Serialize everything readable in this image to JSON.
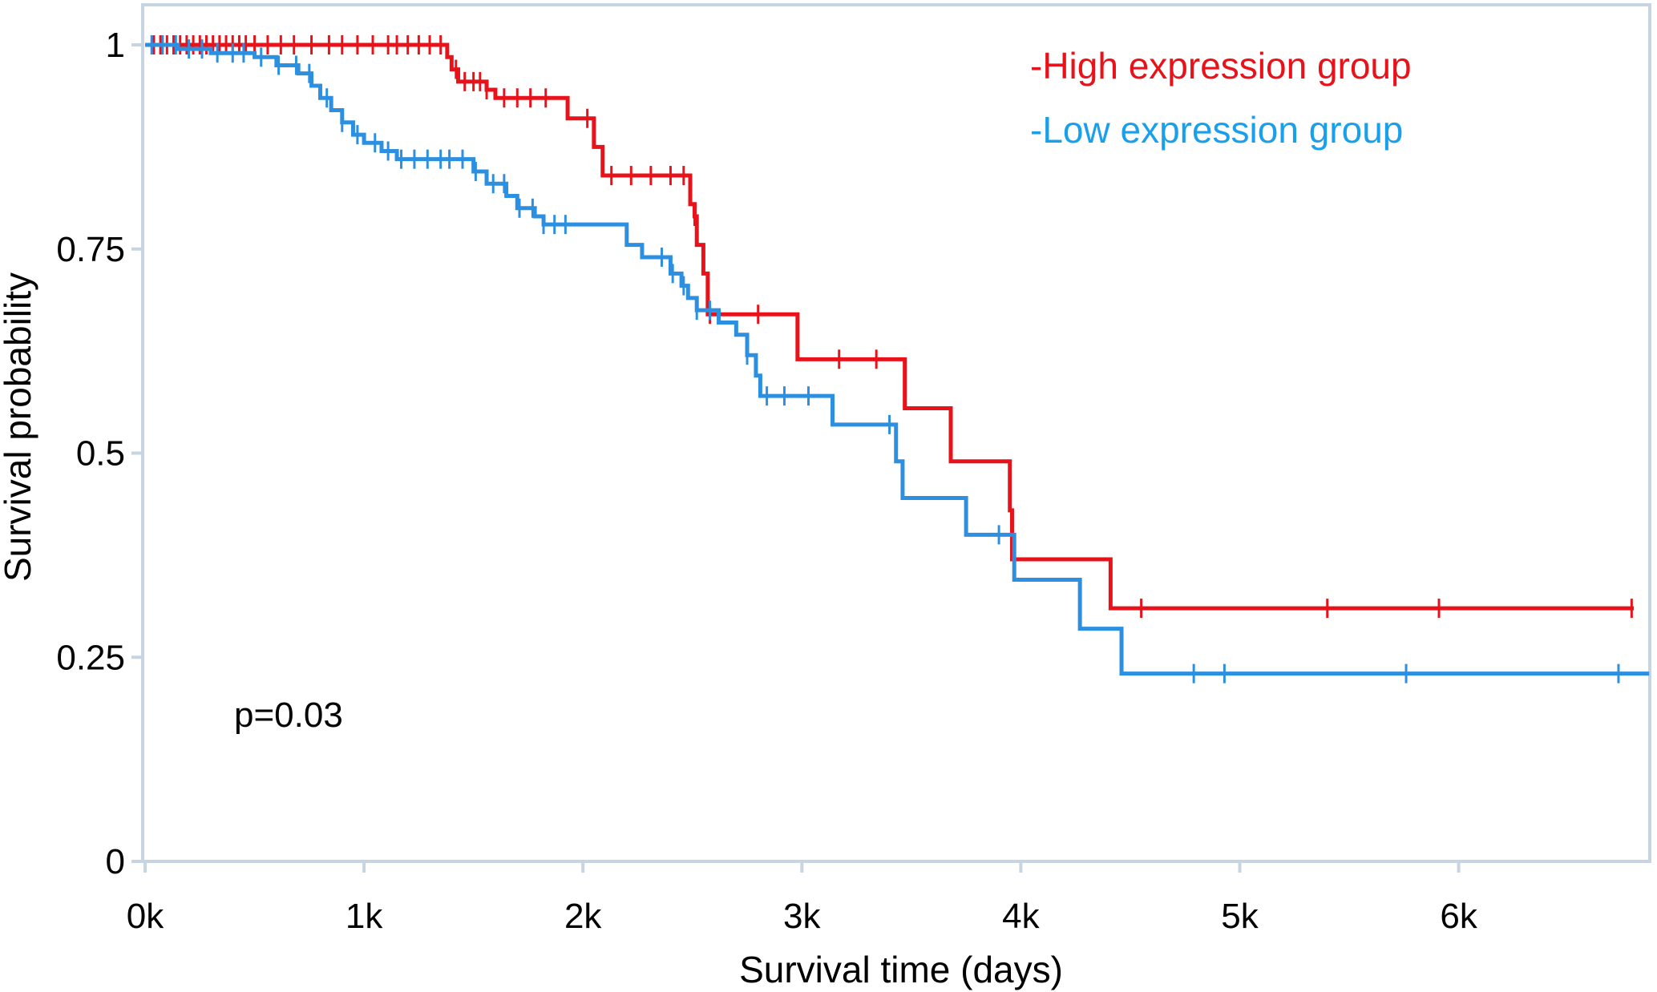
{
  "chart_data": {
    "type": "line",
    "subtype": "kaplan-meier",
    "title": "",
    "xlabel": "Survival time (days)",
    "ylabel": "Survival probability",
    "xlim": [
      0,
      6900
    ],
    "ylim": [
      0,
      1
    ],
    "x_ticks": [
      0,
      1000,
      2000,
      3000,
      4000,
      5000,
      6000
    ],
    "x_tick_labels": [
      "0k",
      "1k",
      "2k",
      "3k",
      "4k",
      "5k",
      "6k"
    ],
    "y_ticks": [
      0,
      0.25,
      0.5,
      0.75,
      1
    ],
    "y_tick_labels": [
      "0",
      "0.25",
      "0.5",
      "0.75",
      "1"
    ],
    "grid": false,
    "legend_position": "top-right",
    "annotation": "p=0.03",
    "series": [
      {
        "name": "-High expression group",
        "color": "#e8131a",
        "steps": [
          [
            0,
            1.0
          ],
          [
            1380,
            0.985
          ],
          [
            1400,
            0.97
          ],
          [
            1430,
            0.955
          ],
          [
            1560,
            0.945
          ],
          [
            1600,
            0.935
          ],
          [
            1930,
            0.91
          ],
          [
            2050,
            0.875
          ],
          [
            2090,
            0.84
          ],
          [
            2490,
            0.805
          ],
          [
            2510,
            0.79
          ],
          [
            2520,
            0.755
          ],
          [
            2550,
            0.72
          ],
          [
            2570,
            0.67
          ],
          [
            2980,
            0.615
          ],
          [
            3470,
            0.555
          ],
          [
            3680,
            0.49
          ],
          [
            3950,
            0.43
          ],
          [
            3960,
            0.37
          ],
          [
            4410,
            0.31
          ],
          [
            6800,
            0.31
          ]
        ],
        "censor_x": [
          40,
          70,
          100,
          130,
          160,
          190,
          220,
          250,
          280,
          310,
          340,
          370,
          400,
          430,
          460,
          500,
          560,
          620,
          680,
          760,
          840,
          900,
          970,
          1040,
          1110,
          1150,
          1200,
          1250,
          1300,
          1350,
          1420,
          1460,
          1500,
          1530,
          1560,
          1640,
          1700,
          1760,
          1830,
          2020,
          2130,
          2220,
          2310,
          2400,
          2460,
          2510,
          2580,
          2800,
          3170,
          3340,
          4550,
          5400,
          5910,
          6790
        ]
      },
      {
        "name": "-Low expression group",
        "color": "#2d8fe0",
        "steps": [
          [
            0,
            1.0
          ],
          [
            150,
            0.995
          ],
          [
            300,
            0.99
          ],
          [
            500,
            0.985
          ],
          [
            600,
            0.975
          ],
          [
            700,
            0.965
          ],
          [
            760,
            0.95
          ],
          [
            800,
            0.935
          ],
          [
            850,
            0.92
          ],
          [
            900,
            0.905
          ],
          [
            950,
            0.89
          ],
          [
            1000,
            0.88
          ],
          [
            1080,
            0.87
          ],
          [
            1150,
            0.86
          ],
          [
            1500,
            0.845
          ],
          [
            1560,
            0.83
          ],
          [
            1650,
            0.815
          ],
          [
            1700,
            0.8
          ],
          [
            1780,
            0.79
          ],
          [
            1820,
            0.78
          ],
          [
            2200,
            0.755
          ],
          [
            2270,
            0.74
          ],
          [
            2400,
            0.72
          ],
          [
            2450,
            0.705
          ],
          [
            2480,
            0.69
          ],
          [
            2520,
            0.675
          ],
          [
            2620,
            0.66
          ],
          [
            2700,
            0.645
          ],
          [
            2750,
            0.62
          ],
          [
            2790,
            0.595
          ],
          [
            2810,
            0.57
          ],
          [
            3140,
            0.535
          ],
          [
            3430,
            0.49
          ],
          [
            3460,
            0.445
          ],
          [
            3750,
            0.4
          ],
          [
            3970,
            0.345
          ],
          [
            4270,
            0.285
          ],
          [
            4460,
            0.23
          ],
          [
            6870,
            0.23
          ]
        ],
        "censor_x": [
          30,
          80,
          140,
          200,
          260,
          330,
          400,
          450,
          530,
          610,
          690,
          750,
          830,
          900,
          970,
          1050,
          1110,
          1170,
          1230,
          1290,
          1350,
          1390,
          1450,
          1510,
          1590,
          1640,
          1710,
          1770,
          1820,
          1870,
          1920,
          2360,
          2410,
          2460,
          2520,
          2580,
          2750,
          2840,
          2920,
          3030,
          3400,
          3900,
          4790,
          4930,
          5760,
          6730
        ]
      }
    ]
  }
}
